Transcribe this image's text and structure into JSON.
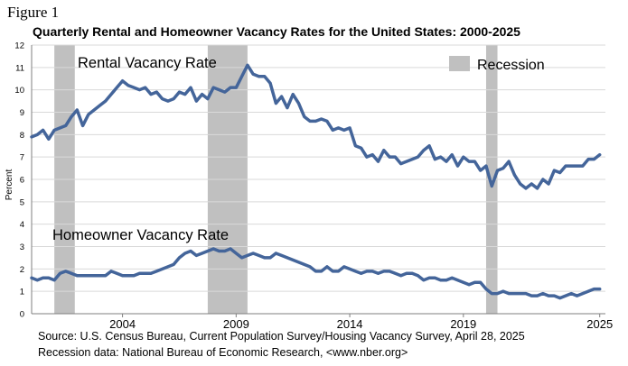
{
  "figure_label": "Figure 1",
  "chart_data": {
    "type": "line",
    "title": "Quarterly Rental and Homeowner Vacancy Rates for the United States: 2000-2025",
    "ylabel": "Percent",
    "xlabel": "",
    "ylim": [
      0,
      12
    ],
    "yticks": [
      0,
      1,
      2,
      3,
      4,
      5,
      6,
      7,
      8,
      9,
      10,
      11,
      12
    ],
    "xlim": [
      2000,
      2025.25
    ],
    "xticks": [
      "2004",
      "2009",
      "2014",
      "2019",
      "2025"
    ],
    "xtick_values": [
      2004,
      2009,
      2014,
      2019,
      2025
    ],
    "grid": true,
    "legend": {
      "label": "Recession",
      "placement": "top-right"
    },
    "recessions": [
      {
        "start": 2001.0,
        "end": 2001.9
      },
      {
        "start": 2007.75,
        "end": 2009.5
      },
      {
        "start": 2020.0,
        "end": 2020.5
      }
    ],
    "color_recession": "#c0c0c0",
    "color_line": "#44659a",
    "series": [
      {
        "name": "Rental Vacancy Rate",
        "x_start": 2000.0,
        "x_step": 0.25,
        "values": [
          7.9,
          8.0,
          8.2,
          7.8,
          8.2,
          8.3,
          8.4,
          8.8,
          9.1,
          8.4,
          8.9,
          9.1,
          9.3,
          9.5,
          9.8,
          10.1,
          10.4,
          10.2,
          10.1,
          10.0,
          10.1,
          9.8,
          9.9,
          9.6,
          9.5,
          9.6,
          9.9,
          9.8,
          10.1,
          9.5,
          9.8,
          9.6,
          10.1,
          10.0,
          9.9,
          10.1,
          10.1,
          10.6,
          11.1,
          10.7,
          10.6,
          10.6,
          10.3,
          9.4,
          9.7,
          9.2,
          9.8,
          9.4,
          8.8,
          8.6,
          8.6,
          8.7,
          8.6,
          8.2,
          8.3,
          8.2,
          8.3,
          7.5,
          7.4,
          7.0,
          7.1,
          6.8,
          7.3,
          7.0,
          7.0,
          6.7,
          6.8,
          6.9,
          7.0,
          7.3,
          7.5,
          6.9,
          7.0,
          6.8,
          7.1,
          6.6,
          7.0,
          6.8,
          6.8,
          6.4,
          6.6,
          5.7,
          6.4,
          6.5,
          6.8,
          6.2,
          5.8,
          5.6,
          5.8,
          5.6,
          6.0,
          5.8,
          6.4,
          6.3,
          6.6,
          6.6,
          6.6,
          6.6,
          6.9,
          6.9,
          7.1
        ]
      },
      {
        "name": "Homeowner Vacancy Rate",
        "x_start": 2000.0,
        "x_step": 0.25,
        "values": [
          1.6,
          1.5,
          1.6,
          1.6,
          1.5,
          1.8,
          1.9,
          1.8,
          1.7,
          1.7,
          1.7,
          1.7,
          1.7,
          1.7,
          1.9,
          1.8,
          1.7,
          1.7,
          1.7,
          1.8,
          1.8,
          1.8,
          1.9,
          2.0,
          2.1,
          2.2,
          2.5,
          2.7,
          2.8,
          2.6,
          2.7,
          2.8,
          2.9,
          2.8,
          2.8,
          2.9,
          2.7,
          2.5,
          2.6,
          2.7,
          2.6,
          2.5,
          2.5,
          2.7,
          2.6,
          2.5,
          2.4,
          2.3,
          2.2,
          2.1,
          1.9,
          1.9,
          2.1,
          1.9,
          1.9,
          2.1,
          2.0,
          1.9,
          1.8,
          1.9,
          1.9,
          1.8,
          1.9,
          1.9,
          1.8,
          1.7,
          1.8,
          1.8,
          1.7,
          1.5,
          1.6,
          1.6,
          1.5,
          1.5,
          1.6,
          1.5,
          1.4,
          1.3,
          1.4,
          1.4,
          1.1,
          0.9,
          0.9,
          1.0,
          0.9,
          0.9,
          0.9,
          0.9,
          0.8,
          0.8,
          0.9,
          0.8,
          0.8,
          0.7,
          0.8,
          0.9,
          0.8,
          0.9,
          1.0,
          1.1,
          1.1
        ]
      }
    ],
    "annotations": [
      "Rental Vacancy Rate",
      "Homeowner Vacancy Rate"
    ]
  },
  "source_lines": [
    "Source: U.S. Census Bureau, Current Population Survey/Housing Vacancy Survey, April 28, 2025",
    "Recession data: National Bureau of Economic Research, <www.nber.org>"
  ]
}
